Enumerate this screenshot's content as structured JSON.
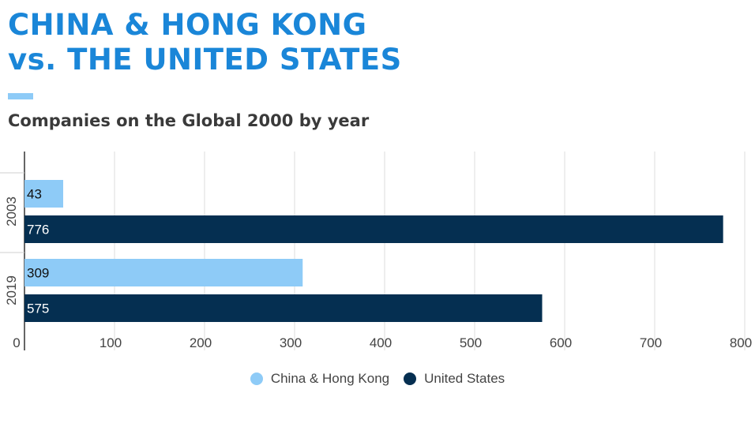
{
  "header": {
    "title_line1": "CHINA & HONG KONG",
    "title_line2": "vs. THE UNITED STATES",
    "subtitle": "Companies on the Global 2000 by year"
  },
  "colors": {
    "title": "#1a86d8",
    "accent_bar": "#8ecbf7",
    "china_hk": "#8ecbf7",
    "united_states": "#052f51"
  },
  "chart_data": {
    "type": "bar",
    "orientation": "horizontal",
    "categories": [
      "2003",
      "2019"
    ],
    "series": [
      {
        "name": "China & Hong Kong",
        "values": [
          43,
          309
        ],
        "color": "#8ecbf7"
      },
      {
        "name": "United States",
        "values": [
          776,
          575
        ],
        "color": "#052f51"
      }
    ],
    "xlim": [
      0,
      800
    ],
    "xticks": [
      0,
      100,
      200,
      300,
      400,
      500,
      600,
      700,
      800
    ],
    "grid": true,
    "legend_position": "bottom-center"
  }
}
